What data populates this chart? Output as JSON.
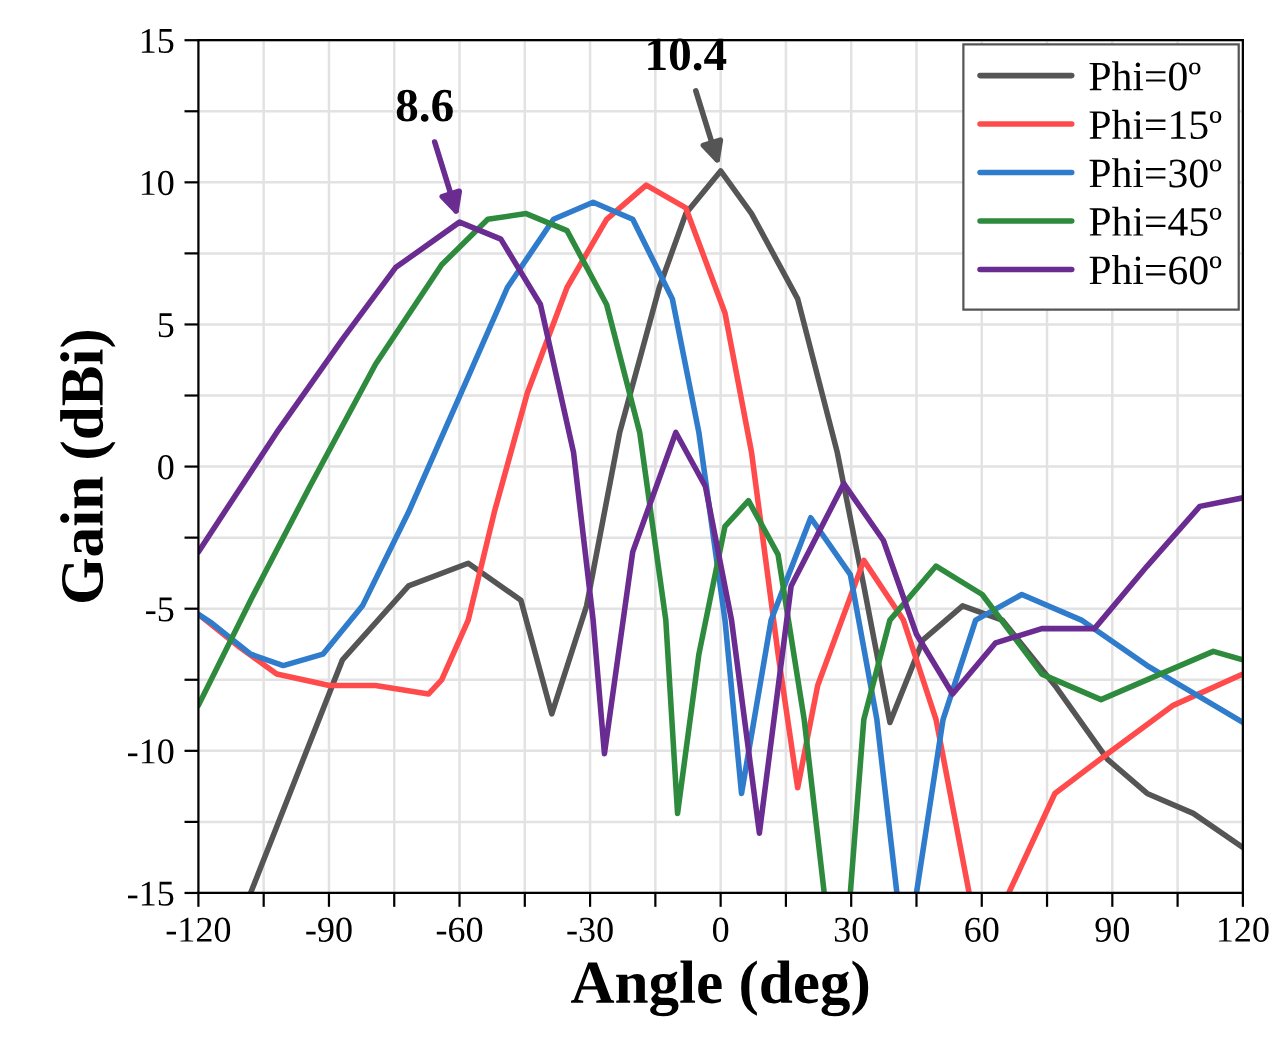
{
  "chart_data": {
    "type": "line",
    "xlabel": "Angle (deg)",
    "ylabel": "Gain (dBi)",
    "xlim": [
      -120,
      120
    ],
    "ylim": [
      -15,
      15
    ],
    "xticks": [
      -120,
      {
        "value": -105,
        "label": null
      },
      -90,
      {
        "value": -75,
        "label": null
      },
      -60,
      {
        "value": -45,
        "label": null
      },
      -30,
      {
        "value": -15,
        "label": null
      },
      0,
      {
        "value": 15,
        "label": null
      },
      30,
      {
        "value": 45,
        "label": null
      },
      60,
      {
        "value": 75,
        "label": null
      },
      90,
      {
        "value": 105,
        "label": null
      },
      120
    ],
    "yticks": [
      -15,
      {
        "value": -12.5,
        "label": null
      },
      -10,
      {
        "value": -7.5,
        "label": null
      },
      -5,
      {
        "value": -2.5,
        "label": null
      },
      0,
      {
        "value": 2.5,
        "label": null
      },
      5,
      {
        "value": 7.5,
        "label": null
      },
      10,
      {
        "value": 12.5,
        "label": null
      },
      15
    ],
    "grid": true,
    "legend": "top right",
    "line_style": "solid",
    "marker": "none",
    "annotations": [
      {
        "text": "10.4",
        "x": 0,
        "y": 10.4
      },
      {
        "text": "8.6",
        "x": -60,
        "y": 8.6
      }
    ],
    "series": [
      {
        "name": "Phi=0º",
        "color": "#555555",
        "x": [
          -108,
          -86.9,
          -71.7,
          -58,
          -45.9,
          -38.8,
          -30.8,
          -23.2,
          -14.1,
          -8,
          0,
          7.1,
          17.7,
          26.8,
          32.9,
          38.9,
          46.5,
          55.6,
          64.7,
          76.8,
          88.9,
          98,
          108.6,
          120
        ],
        "values": [
          -15,
          -6.8,
          -4.2,
          -3.4,
          -4.7,
          -8.7,
          -4.9,
          1.2,
          6.3,
          8.9,
          10.4,
          8.9,
          5.9,
          0.5,
          -4.2,
          -9.0,
          -6.1,
          -4.9,
          -5.4,
          -7.7,
          -10.3,
          -11.5,
          -12.2,
          -13.4
        ]
      },
      {
        "name": "Phi=15º",
        "color": "#ff4b4b",
        "x": [
          -120,
          -111,
          -102,
          -89.9,
          -79.3,
          -67.1,
          -64.1,
          -58,
          -52,
          -44.4,
          -35.3,
          -26.2,
          -17.1,
          -8,
          1,
          7.1,
          13.2,
          17.7,
          22.3,
          32.9,
          42,
          49.5,
          57.1,
          61,
          66.2,
          76.8,
          88.9,
          104,
          120
        ],
        "values": [
          -5.2,
          -6.3,
          -7.3,
          -7.7,
          -7.7,
          -8.0,
          -7.5,
          -5.4,
          -1.6,
          2.6,
          6.3,
          8.7,
          9.9,
          9.1,
          5.4,
          0.5,
          -6.6,
          -11.3,
          -7.7,
          -3.3,
          -5.4,
          -8.9,
          -15,
          null,
          -15,
          -11.5,
          -10.1,
          -8.4,
          -7.3
        ]
      },
      {
        "name": "Phi=30º",
        "color": "#2f7bcc",
        "x": [
          -120,
          -117,
          -108,
          -100.5,
          -91.4,
          -82.3,
          -71.7,
          -59.6,
          -49,
          -38.4,
          -29.3,
          -20.2,
          -11.1,
          -5,
          1,
          4.8,
          11.6,
          20.7,
          29.8,
          35.9,
          40.5,
          43,
          45,
          51.1,
          58.6,
          69.2,
          82.9,
          98,
          120
        ],
        "values": [
          -5.2,
          -5.5,
          -6.6,
          -7.0,
          -6.6,
          -4.9,
          -1.6,
          2.6,
          6.3,
          8.7,
          9.3,
          8.7,
          5.9,
          1.2,
          -5.4,
          -11.5,
          -5.4,
          -1.8,
          -3.8,
          -8.9,
          -15,
          null,
          -15,
          -8.9,
          -5.4,
          -4.5,
          -5.4,
          -7.0,
          -9.0
        ]
      },
      {
        "name": "Phi=45º",
        "color": "#2e8b3e",
        "x": [
          -120,
          -108,
          -94.4,
          -79.3,
          -64.1,
          -53.5,
          -44.7,
          -35.3,
          -26.2,
          -18.6,
          -12.6,
          -9.9,
          -5,
          1,
          6.4,
          13.2,
          19.2,
          23.8,
          27,
          29.8,
          32.9,
          38.9,
          49.5,
          60.1,
          73.8,
          87.4,
          101,
          113.2,
          120
        ],
        "values": [
          -8.4,
          -4.7,
          -0.7,
          3.6,
          7.1,
          8.7,
          8.9,
          8.3,
          5.7,
          1.2,
          -5.4,
          -12.2,
          -6.6,
          -2.1,
          -1.2,
          -3.1,
          -8.9,
          -15,
          null,
          -15,
          -8.9,
          -5.4,
          -3.5,
          -4.5,
          -7.3,
          -8.2,
          -7.3,
          -6.5,
          -6.8
        ]
      },
      {
        "name": "Phi=60º",
        "color": "#6a2c91",
        "x": [
          -120,
          -117,
          -102,
          -86.8,
          -74.7,
          -60,
          -50.5,
          -41.4,
          -33.8,
          -29.3,
          -26.7,
          -20.2,
          -10.3,
          -3.5,
          2.5,
          8.9,
          16.2,
          28.3,
          37.4,
          45,
          53.3,
          63.2,
          73.8,
          85.9,
          98,
          110.1,
          120
        ],
        "values": [
          -3,
          -2.3,
          1.2,
          4.5,
          7.0,
          8.6,
          8.0,
          5.7,
          0.5,
          -5.4,
          -10.1,
          -3.0,
          1.2,
          -0.7,
          -5.4,
          -12.9,
          -4.2,
          -0.6,
          -2.6,
          -5.9,
          -8.0,
          -6.2,
          -5.7,
          -5.7,
          -3.5,
          -1.4,
          -1.1
        ]
      }
    ]
  }
}
